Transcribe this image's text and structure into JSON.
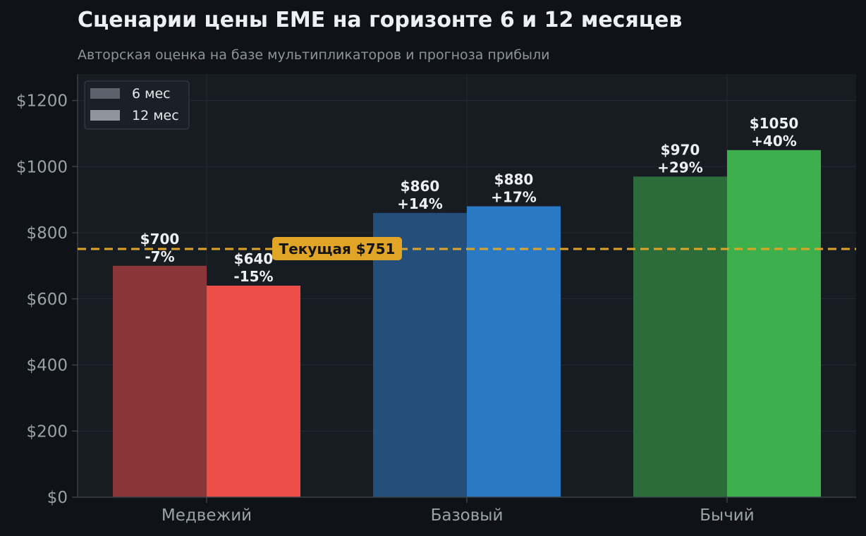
{
  "chart_data": {
    "type": "bar",
    "title": "Сценарии цены EME на горизонте 6 и 12 месяцев",
    "subtitle": "Авторская оценка на базе мультипликаторов и прогноза прибыли",
    "categories": [
      "Медвежий",
      "Базовый",
      "Бычий"
    ],
    "series": [
      {
        "name": "6 мес",
        "values": [
          700,
          860,
          970
        ],
        "labels": [
          "-7%",
          "+14%",
          "+29%"
        ],
        "value_labels": [
          "$700",
          "$860",
          "$970"
        ],
        "colors": [
          "#8a3537",
          "#234f7a",
          "#2c6c3b"
        ]
      },
      {
        "name": "12 мес",
        "values": [
          640,
          880,
          1050
        ],
        "labels": [
          "-15%",
          "+17%",
          "+40%"
        ],
        "value_labels": [
          "$640",
          "$880",
          "$1050"
        ],
        "colors": [
          "#eb4f48",
          "#2a79c4",
          "#3db04d"
        ]
      }
    ],
    "reference_line": {
      "value": 751,
      "label": "Текущая $751",
      "color": "#e0a526"
    },
    "ylim": [
      0,
      1280
    ],
    "yticks": [
      0,
      200,
      400,
      600,
      800,
      1000,
      1200
    ],
    "ytick_labels": [
      "$0",
      "$200",
      "$400",
      "$600",
      "$800",
      "$1000",
      "$1200"
    ],
    "grid": true,
    "legend_position": "top-left",
    "legend_swatch_colors": [
      "#5c626b",
      "#8e959d"
    ],
    "background": "#0f1317",
    "plot_background": "#171b22"
  }
}
